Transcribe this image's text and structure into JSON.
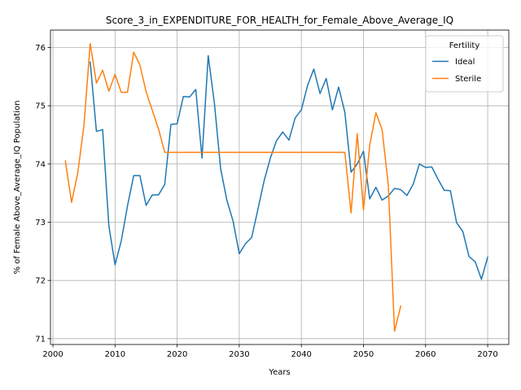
{
  "chart_data": {
    "type": "line",
    "title": "Score_3_in_EXPENDITURE_FOR_HEALTH_for_Female_Above_Average_IQ",
    "xlabel": "Years",
    "ylabel": "% of Female Above_Average_IQ Population",
    "xlim": [
      1999.6,
      2073.4
    ],
    "ylim": [
      70.9,
      76.3
    ],
    "xticks": [
      2000,
      2010,
      2020,
      2030,
      2040,
      2050,
      2060,
      2070
    ],
    "yticks": [
      71,
      72,
      73,
      74,
      75,
      76
    ],
    "grid": true,
    "legend": {
      "title": "Fertility",
      "position": "top-right"
    },
    "series": [
      {
        "name": "Ideal",
        "color": "#1f77b4",
        "x": [
          2006,
          2007,
          2008,
          2009,
          2010,
          2011,
          2012,
          2013,
          2014,
          2015,
          2016,
          2017,
          2018,
          2019,
          2020,
          2021,
          2022,
          2023,
          2024,
          2025,
          2026,
          2027,
          2028,
          2029,
          2030,
          2031,
          2032,
          2033,
          2034,
          2035,
          2036,
          2037,
          2038,
          2039,
          2040,
          2041,
          2042,
          2043,
          2044,
          2045,
          2046,
          2047,
          2048,
          2049,
          2050,
          2051,
          2052,
          2053,
          2054,
          2055,
          2056,
          2057,
          2058,
          2059,
          2060,
          2061,
          2062,
          2063,
          2064,
          2065,
          2066,
          2067,
          2068,
          2069,
          2070
        ],
        "y": [
          75.75,
          74.56,
          74.59,
          72.94,
          72.27,
          72.68,
          73.28,
          73.8,
          73.8,
          73.29,
          73.47,
          73.47,
          73.65,
          74.68,
          74.69,
          75.16,
          75.15,
          75.28,
          74.1,
          75.86,
          75.04,
          73.92,
          73.38,
          73.02,
          72.46,
          72.63,
          72.74,
          73.22,
          73.71,
          74.1,
          74.4,
          74.55,
          74.41,
          74.79,
          74.93,
          75.35,
          75.63,
          75.21,
          75.47,
          74.93,
          75.32,
          74.89,
          73.86,
          74.0,
          74.22,
          73.4,
          73.6,
          73.38,
          73.45,
          73.58,
          73.56,
          73.46,
          73.65,
          74.0,
          73.94,
          73.95,
          73.74,
          73.55,
          73.54,
          72.99,
          72.84,
          72.41,
          72.32,
          72.02,
          72.4
        ]
      },
      {
        "name": "Sterile",
        "color": "#ff7f0e",
        "x": [
          2002,
          2003,
          2004,
          2005,
          2006,
          2007,
          2008,
          2009,
          2010,
          2011,
          2012,
          2013,
          2014,
          2015,
          2016,
          2017,
          2018,
          2019,
          2020,
          2025,
          2030,
          2035,
          2040,
          2045,
          2047,
          2048,
          2049,
          2050,
          2051,
          2052,
          2053,
          2054,
          2055,
          2056
        ],
        "y": [
          74.05,
          73.34,
          73.85,
          74.67,
          76.07,
          75.39,
          75.61,
          75.25,
          75.54,
          75.23,
          75.23,
          75.92,
          75.7,
          75.24,
          74.92,
          74.6,
          74.2,
          74.2,
          74.2,
          74.2,
          74.2,
          74.2,
          74.2,
          74.2,
          74.2,
          73.16,
          74.52,
          73.21,
          74.32,
          74.88,
          74.59,
          73.64,
          71.13,
          71.56
        ]
      }
    ]
  }
}
